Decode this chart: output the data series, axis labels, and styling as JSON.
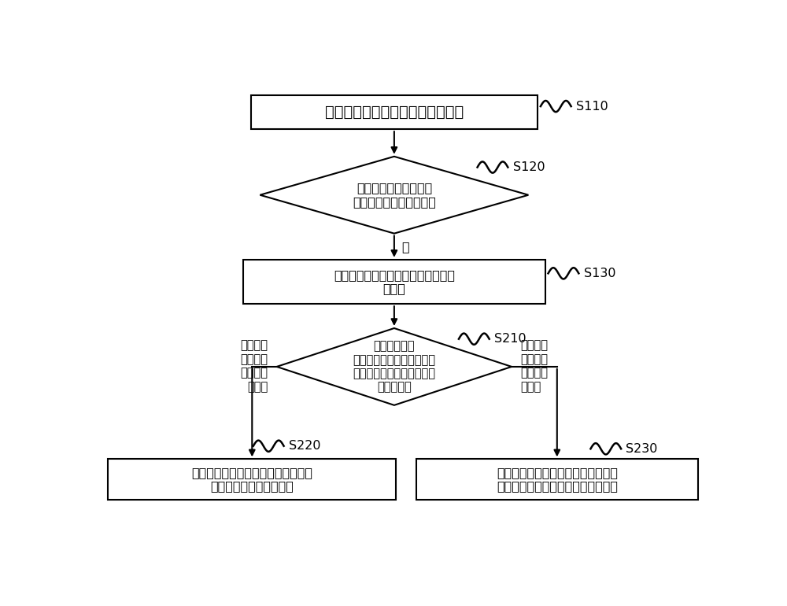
{
  "bg_color": "#ffffff",
  "line_color": "#000000",
  "box_fill": "#ffffff",
  "box_edge": "#000000",
  "font_size": 14,
  "font_size_small": 11.5,
  "font_size_label": 10.5,
  "s110_label": "S110",
  "s120_label": "S120",
  "s130_label": "S130",
  "s210_label": "S210",
  "s220_label": "S220",
  "s230_label": "S230",
  "box1_text": "检测并网变换器网侧的并网点电压",
  "diamond1_text": "判断并网点电压是否在\n预设电网电压限值区间内",
  "box2_text": "计算并网变换器直流侧的直流母线电\n压大小",
  "diamond2_text": "分别判断直流\n母线电压与第一预设直流电\n压限值和第二预设直流电压\n限值的关系",
  "box3_text": "使用飞轮储能变换器从所述直流母线\n吸收直驱风机释放的电能",
  "box4_text": "飞轮储能变换器通过所述直流母线向\n并网变换器网侧的电网系统释放电能",
  "no_label": "否",
  "left_label": "大于或等\n于第一预\n设直流电\n压限值",
  "right_label": "小于或等\n于第二预\n设直流电\n压限值"
}
